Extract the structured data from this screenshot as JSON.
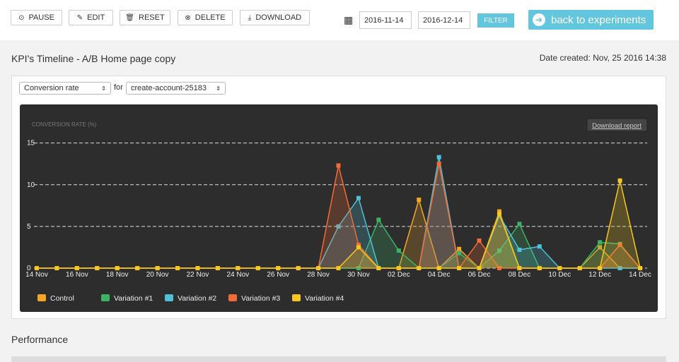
{
  "toolbar": {
    "buttons": [
      "PAUSE",
      "EDIT",
      "RESET",
      "DELETE",
      "DOWNLOAD"
    ],
    "date_from": "2016-11-14",
    "date_to": "2016-12-14",
    "filter": "FILTER",
    "back": "back to experiments"
  },
  "header": {
    "title": "KPI's Timeline - A/B Home page copy",
    "date_created": "Date created: Nov, 25 2016 14:38"
  },
  "controls": {
    "metric": "Conversion rate",
    "for": "for",
    "goal": "create-account-25183"
  },
  "chart_data": {
    "type": "line",
    "y_label": "CONVERSION RATE (%)",
    "download": "Download report",
    "categories": [
      "14 Nov",
      null,
      "16 Nov",
      null,
      "18 Nov",
      null,
      "20 Nov",
      null,
      "22 Nov",
      null,
      "24 Nov",
      null,
      "26 Nov",
      null,
      "28 Nov",
      null,
      "30 Nov",
      null,
      "02 Dec",
      null,
      "04 Dec",
      null,
      "06 Dec",
      null,
      "08 Dec",
      null,
      "10 Dec",
      null,
      "12 Dec",
      null,
      "14 Dec"
    ],
    "ylim": [
      0,
      17
    ],
    "yticks": [
      0,
      5,
      10,
      15
    ],
    "grid": true,
    "series": [
      {
        "name": "Control",
        "color": "#f5a623",
        "values": [
          0,
          0,
          0,
          0,
          0,
          0,
          0,
          0,
          0,
          0,
          0,
          0,
          0,
          0,
          0,
          0,
          0,
          0,
          0,
          8.2,
          0,
          2.3,
          0,
          6.8,
          0,
          0,
          0,
          0,
          2.5,
          0,
          0
        ]
      },
      {
        "name": "Variation #1",
        "color": "#3cb464",
        "values": [
          0,
          0,
          0,
          0,
          0,
          0,
          0,
          0,
          0,
          0,
          0,
          0,
          0,
          0,
          0,
          0,
          0,
          5.8,
          2.1,
          0,
          0,
          1.8,
          0,
          2.1,
          5.3,
          0,
          0,
          0,
          3.1,
          2.9,
          0
        ]
      },
      {
        "name": "Variation #2",
        "color": "#4fc1d6",
        "values": [
          0,
          0,
          0,
          0,
          0,
          0,
          0,
          0,
          0,
          0,
          0,
          0,
          0,
          0,
          0,
          5,
          8.4,
          0,
          0,
          0,
          13.3,
          0,
          0,
          6.3,
          2.2,
          2.6,
          0,
          0,
          0,
          0,
          0
        ]
      },
      {
        "name": "Variation #3",
        "color": "#f26b38",
        "values": [
          0,
          0,
          0,
          0,
          0,
          0,
          0,
          0,
          0,
          0,
          0,
          0,
          0,
          0,
          0,
          12.3,
          2.8,
          0,
          0,
          0,
          12.5,
          0,
          3.3,
          0,
          0,
          0,
          0,
          0,
          0,
          2.8,
          0
        ]
      },
      {
        "name": "Variation #4",
        "color": "#f7c71a",
        "values": [
          0,
          0,
          0,
          0,
          0,
          0,
          0,
          0,
          0,
          0,
          0,
          0,
          0,
          0,
          0,
          0,
          2.5,
          0,
          0,
          0,
          0,
          0,
          0,
          6.5,
          0,
          0,
          0,
          0,
          0,
          10.5,
          0
        ]
      }
    ]
  },
  "section": {
    "title": "Performance"
  }
}
